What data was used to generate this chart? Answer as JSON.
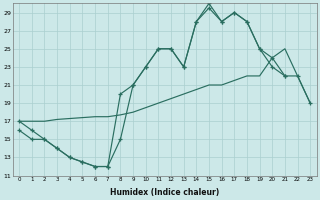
{
  "xlabel": "Humidex (Indice chaleur)",
  "bg_color": "#cce8e8",
  "grid_color": "#aacfcf",
  "line_color": "#2a6e60",
  "xlim": [
    -0.5,
    23.5
  ],
  "ylim": [
    11,
    30
  ],
  "ytick_vals": [
    11,
    13,
    15,
    17,
    19,
    21,
    23,
    25,
    27,
    29
  ],
  "line1_x": [
    0,
    1,
    2,
    3,
    4,
    5,
    6,
    7,
    8,
    9,
    10,
    11,
    12,
    13,
    14,
    15,
    16,
    17,
    18,
    19,
    20,
    21
  ],
  "line1_y": [
    17,
    16,
    15,
    14,
    13,
    12.5,
    12,
    12,
    20,
    21,
    23,
    25,
    25,
    23,
    28,
    29.5,
    28,
    29,
    28,
    25,
    23,
    22
  ],
  "line2_x": [
    0,
    1,
    2,
    3,
    4,
    5,
    6,
    7,
    8,
    9,
    10,
    11,
    12,
    13,
    14,
    15,
    16,
    17,
    18,
    19,
    20,
    21,
    22,
    23
  ],
  "line2_y": [
    17,
    17,
    17,
    17.2,
    17.3,
    17.4,
    17.5,
    17.5,
    17.7,
    18,
    18.5,
    19,
    19.5,
    20,
    20.5,
    21,
    21,
    21.5,
    22,
    22,
    24,
    25,
    22,
    19
  ],
  "line3_x": [
    0,
    1,
    2,
    3,
    4,
    5,
    6,
    7,
    8,
    9,
    10,
    11,
    12,
    13,
    14,
    15,
    16,
    17,
    18,
    19,
    20,
    21,
    22,
    23
  ],
  "line3_y": [
    16,
    15,
    15,
    14,
    13,
    12.5,
    12,
    12,
    15,
    21,
    23,
    25,
    25,
    23,
    28,
    30,
    28,
    29,
    28,
    25,
    24,
    22,
    22,
    19
  ]
}
